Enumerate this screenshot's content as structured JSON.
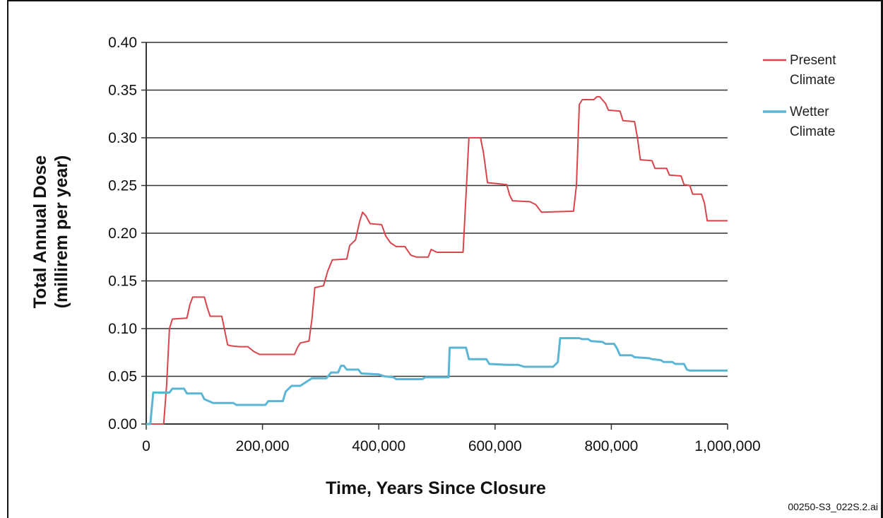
{
  "chart_data": {
    "type": "line",
    "title": "",
    "xlabel": "Time, Years Since Closure",
    "ylabel_line1": "Total Annual Dose",
    "ylabel_line2": "(millirem per year)",
    "xlim": [
      0,
      1000000
    ],
    "ylim": [
      0,
      0.4
    ],
    "grid": "horizontal",
    "legend_position": "top-right",
    "x_ticks": [
      0,
      200000,
      400000,
      600000,
      800000,
      1000000
    ],
    "x_tick_labels": [
      "0",
      "200,000",
      "400,000",
      "600,000",
      "800,000",
      "1,000,000"
    ],
    "y_ticks": [
      0,
      0.05,
      0.1,
      0.15,
      0.2,
      0.25,
      0.3,
      0.35,
      0.4
    ],
    "y_tick_labels": [
      "0.00",
      "0.05",
      "0.10",
      "0.15",
      "0.20",
      "0.25",
      "0.30",
      "0.35",
      "0.40"
    ],
    "series": [
      {
        "name": "Present Climate",
        "legend_line1": "Present",
        "legend_line2": "Climate",
        "color": "#d9444c",
        "points": [
          [
            0,
            0
          ],
          [
            30000,
            0
          ],
          [
            35000,
            0.04
          ],
          [
            40000,
            0.1
          ],
          [
            45000,
            0.11
          ],
          [
            70000,
            0.111
          ],
          [
            75000,
            0.125
          ],
          [
            80000,
            0.133
          ],
          [
            100000,
            0.133
          ],
          [
            105000,
            0.122
          ],
          [
            110000,
            0.113
          ],
          [
            130000,
            0.113
          ],
          [
            135000,
            0.098
          ],
          [
            140000,
            0.083
          ],
          [
            145000,
            0.082
          ],
          [
            160000,
            0.081
          ],
          [
            175000,
            0.081
          ],
          [
            185000,
            0.076
          ],
          [
            195000,
            0.073
          ],
          [
            255000,
            0.073
          ],
          [
            260000,
            0.08
          ],
          [
            265000,
            0.085
          ],
          [
            280000,
            0.087
          ],
          [
            285000,
            0.11
          ],
          [
            290000,
            0.143
          ],
          [
            305000,
            0.145
          ],
          [
            312000,
            0.16
          ],
          [
            320000,
            0.172
          ],
          [
            345000,
            0.173
          ],
          [
            350000,
            0.187
          ],
          [
            360000,
            0.193
          ],
          [
            367000,
            0.212
          ],
          [
            372000,
            0.222
          ],
          [
            378000,
            0.218
          ],
          [
            385000,
            0.21
          ],
          [
            405000,
            0.209
          ],
          [
            412000,
            0.197
          ],
          [
            420000,
            0.19
          ],
          [
            430000,
            0.186
          ],
          [
            445000,
            0.186
          ],
          [
            455000,
            0.177
          ],
          [
            465000,
            0.175
          ],
          [
            485000,
            0.175
          ],
          [
            490000,
            0.183
          ],
          [
            500000,
            0.18
          ],
          [
            545000,
            0.18
          ],
          [
            550000,
            0.24
          ],
          [
            555000,
            0.3
          ],
          [
            575000,
            0.3
          ],
          [
            580000,
            0.285
          ],
          [
            587000,
            0.253
          ],
          [
            620000,
            0.251
          ],
          [
            625000,
            0.24
          ],
          [
            630000,
            0.234
          ],
          [
            660000,
            0.233
          ],
          [
            670000,
            0.23
          ],
          [
            680000,
            0.222
          ],
          [
            735000,
            0.223
          ],
          [
            740000,
            0.25
          ],
          [
            745000,
            0.335
          ],
          [
            750000,
            0.34
          ],
          [
            770000,
            0.34
          ],
          [
            775000,
            0.343
          ],
          [
            780000,
            0.343
          ],
          [
            790000,
            0.336
          ],
          [
            795000,
            0.329
          ],
          [
            815000,
            0.328
          ],
          [
            820000,
            0.318
          ],
          [
            840000,
            0.317
          ],
          [
            845000,
            0.3
          ],
          [
            850000,
            0.277
          ],
          [
            870000,
            0.276
          ],
          [
            875000,
            0.268
          ],
          [
            895000,
            0.268
          ],
          [
            900000,
            0.261
          ],
          [
            920000,
            0.26
          ],
          [
            925000,
            0.251
          ],
          [
            935000,
            0.25
          ],
          [
            940000,
            0.241
          ],
          [
            955000,
            0.241
          ],
          [
            960000,
            0.232
          ],
          [
            965000,
            0.213
          ],
          [
            1000000,
            0.213
          ]
        ]
      },
      {
        "name": "Wetter Climate",
        "legend_line1": "Wetter",
        "legend_line2": "Climate",
        "color": "#5bb6d6",
        "points": [
          [
            0,
            0
          ],
          [
            7000,
            0
          ],
          [
            12000,
            0.033
          ],
          [
            40000,
            0.033
          ],
          [
            45000,
            0.037
          ],
          [
            65000,
            0.037
          ],
          [
            70000,
            0.032
          ],
          [
            95000,
            0.032
          ],
          [
            100000,
            0.026
          ],
          [
            115000,
            0.022
          ],
          [
            150000,
            0.022
          ],
          [
            155000,
            0.02
          ],
          [
            205000,
            0.02
          ],
          [
            210000,
            0.024
          ],
          [
            235000,
            0.024
          ],
          [
            240000,
            0.034
          ],
          [
            250000,
            0.04
          ],
          [
            265000,
            0.04
          ],
          [
            275000,
            0.044
          ],
          [
            285000,
            0.048
          ],
          [
            310000,
            0.048
          ],
          [
            318000,
            0.054
          ],
          [
            330000,
            0.054
          ],
          [
            335000,
            0.061
          ],
          [
            340000,
            0.061
          ],
          [
            345000,
            0.057
          ],
          [
            365000,
            0.057
          ],
          [
            370000,
            0.053
          ],
          [
            400000,
            0.052
          ],
          [
            410000,
            0.05
          ],
          [
            425000,
            0.049
          ],
          [
            430000,
            0.047
          ],
          [
            475000,
            0.047
          ],
          [
            480000,
            0.049
          ],
          [
            520000,
            0.049
          ],
          [
            522000,
            0.08
          ],
          [
            550000,
            0.08
          ],
          [
            555000,
            0.068
          ],
          [
            585000,
            0.068
          ],
          [
            590000,
            0.063
          ],
          [
            620000,
            0.062
          ],
          [
            640000,
            0.062
          ],
          [
            650000,
            0.06
          ],
          [
            700000,
            0.06
          ],
          [
            708000,
            0.065
          ],
          [
            712000,
            0.09
          ],
          [
            745000,
            0.09
          ],
          [
            750000,
            0.089
          ],
          [
            760000,
            0.089
          ],
          [
            765000,
            0.087
          ],
          [
            785000,
            0.086
          ],
          [
            790000,
            0.084
          ],
          [
            805000,
            0.084
          ],
          [
            810000,
            0.079
          ],
          [
            815000,
            0.072
          ],
          [
            835000,
            0.072
          ],
          [
            840000,
            0.07
          ],
          [
            865000,
            0.069
          ],
          [
            870000,
            0.068
          ],
          [
            885000,
            0.067
          ],
          [
            890000,
            0.065
          ],
          [
            905000,
            0.065
          ],
          [
            910000,
            0.063
          ],
          [
            925000,
            0.063
          ],
          [
            930000,
            0.057
          ],
          [
            935000,
            0.056
          ],
          [
            960000,
            0.056
          ],
          [
            1000000,
            0.056
          ]
        ]
      }
    ]
  },
  "footnote": "00250-S3_022S.2.ai"
}
